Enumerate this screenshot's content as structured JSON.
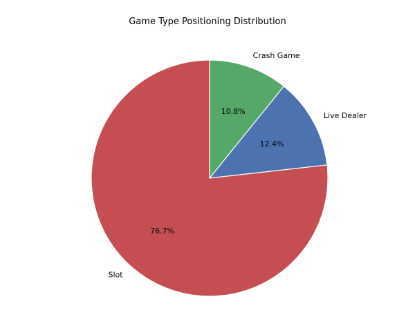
{
  "chart_data": {
    "type": "pie",
    "title": "Game Type Positioning Distribution",
    "categories": [
      "Crash Game",
      "Live Dealer",
      "Slot"
    ],
    "values": [
      10.8,
      12.4,
      76.7
    ],
    "value_labels": [
      "10.8%",
      "12.4%",
      "76.7%"
    ],
    "colors": [
      "#55a868",
      "#4c72b0",
      "#c44e52"
    ],
    "start_angle_deg": 90,
    "direction": "clockwise",
    "slice_edge_color": "#ffffff",
    "legend": "none"
  }
}
